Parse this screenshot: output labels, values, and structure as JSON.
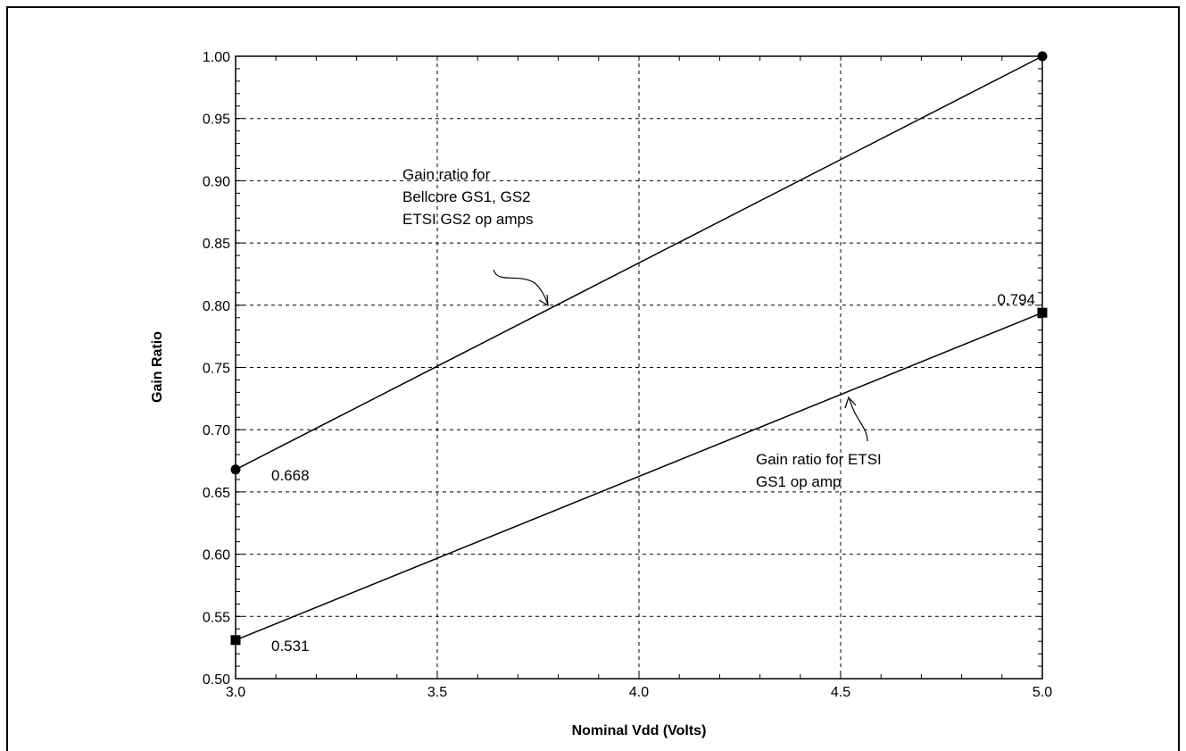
{
  "chart_data": {
    "type": "line",
    "title": "",
    "xlabel": "Nominal Vdd (Volts)",
    "ylabel": "Gain Ratio",
    "xlim": [
      3.0,
      5.0
    ],
    "ylim": [
      0.5,
      1.0
    ],
    "grid": true,
    "x_ticks": [
      3.0,
      3.5,
      4.0,
      4.5,
      5.0
    ],
    "x_tick_labels": [
      "3.0",
      "3.5",
      "4.0",
      "4.5",
      "5.0"
    ],
    "y_ticks": [
      0.5,
      0.55,
      0.6,
      0.65,
      0.7,
      0.75,
      0.8,
      0.85,
      0.9,
      0.95,
      1.0
    ],
    "y_tick_labels": [
      "0.50",
      "0.55",
      "0.60",
      "0.65",
      "0.70",
      "0.75",
      "0.80",
      "0.85",
      "0.90",
      "0.95",
      "1.00"
    ],
    "series": [
      {
        "marker": "circle",
        "x": [
          3.0,
          5.0
        ],
        "y": [
          0.668,
          1.0
        ]
      },
      {
        "marker": "square",
        "x": [
          3.0,
          5.0
        ],
        "y": [
          0.531,
          0.794
        ]
      }
    ],
    "data_labels": [
      {
        "text": "0.668",
        "x": 3.0,
        "y": 0.668
      },
      {
        "text": "0.531",
        "x": 3.0,
        "y": 0.531
      },
      {
        "text": "0.794",
        "x": 5.0,
        "y": 0.794
      }
    ],
    "annotations": [
      {
        "lines": [
          "Gain ratio for",
          "Bellcore GS1, GS2",
          "ETSI GS2 op amps"
        ],
        "points_to": {
          "x": 3.8,
          "y": 0.8
        }
      },
      {
        "lines": [
          "Gain ratio for ETSI",
          "GS1 op amp"
        ],
        "points_to": {
          "x": 4.5,
          "y": 0.728
        }
      }
    ]
  }
}
